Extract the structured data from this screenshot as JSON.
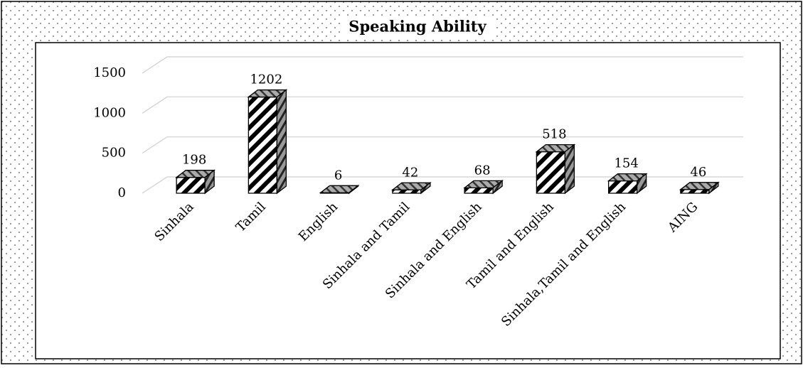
{
  "chart_data": {
    "type": "bar3d",
    "title": "Speaking Ability",
    "categories": [
      "Sinhala",
      "Tamil",
      "English",
      "Sinhala and Tamil",
      "Sinhala and English",
      "Tamil and English",
      "Sinhala,Tamil and English",
      "AING"
    ],
    "values": [
      198,
      1202,
      6,
      42,
      68,
      518,
      154,
      46
    ],
    "ylim": [
      0,
      1500
    ],
    "yticks": [
      0,
      500,
      1000,
      1500
    ],
    "grid": true,
    "color": "#000000"
  }
}
